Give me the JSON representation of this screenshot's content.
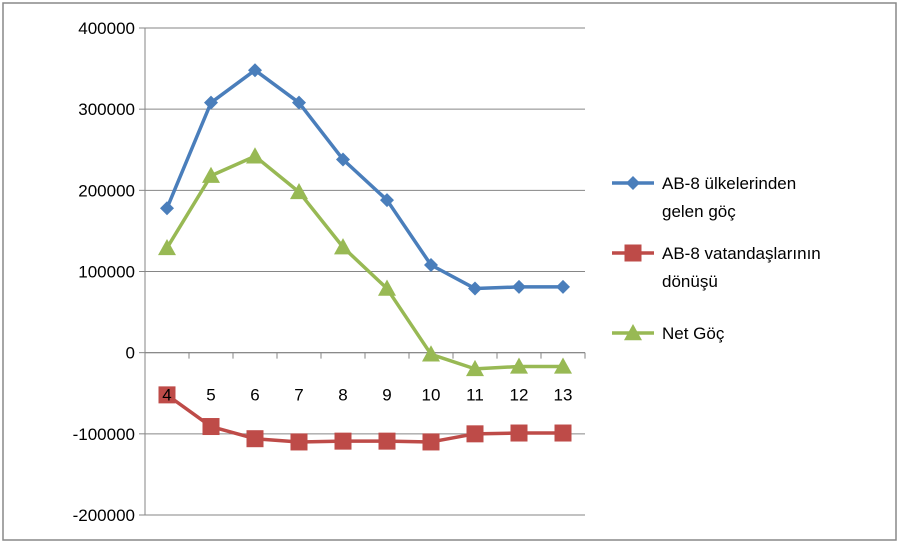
{
  "chart_data": {
    "type": "line",
    "title": "",
    "xlabel": "",
    "ylabel": "",
    "x": [
      "4",
      "5",
      "6",
      "7",
      "8",
      "9",
      "10",
      "11",
      "12",
      "13"
    ],
    "ylim": [
      -200000,
      400000
    ],
    "yticks": [
      400000,
      300000,
      200000,
      100000,
      0,
      -100000,
      -200000
    ],
    "ytick_labels": [
      "400000",
      "300000",
      "200000",
      "100000",
      "0",
      "-100000",
      "-200000"
    ],
    "grid": true,
    "legend_position": "right",
    "series": [
      {
        "name": "AB-8 ülkelerinden gelen göç",
        "legend_lines": [
          "AB-8 ülkelerinden",
          "gelen göç"
        ],
        "color": "#4a7ebb",
        "marker": "diamond",
        "values": [
          178000,
          308000,
          348000,
          308000,
          238000,
          188000,
          108000,
          79000,
          81000,
          81000
        ]
      },
      {
        "name": "AB-8 vatandaşlarının dönüşü",
        "legend_lines": [
          "AB-8 vatandaşlarının",
          "dönüşü"
        ],
        "color": "#be4b48",
        "marker": "square",
        "values": [
          -52000,
          -91000,
          -106000,
          -110000,
          -109000,
          -109000,
          -110000,
          -100000,
          -99000,
          -99000
        ]
      },
      {
        "name": "Net Göç",
        "legend_lines": [
          "Net Göç"
        ],
        "color": "#98b954",
        "marker": "triangle",
        "values": [
          129000,
          218000,
          242000,
          198000,
          130000,
          79000,
          -2000,
          -20000,
          -17000,
          -17000
        ]
      }
    ]
  }
}
